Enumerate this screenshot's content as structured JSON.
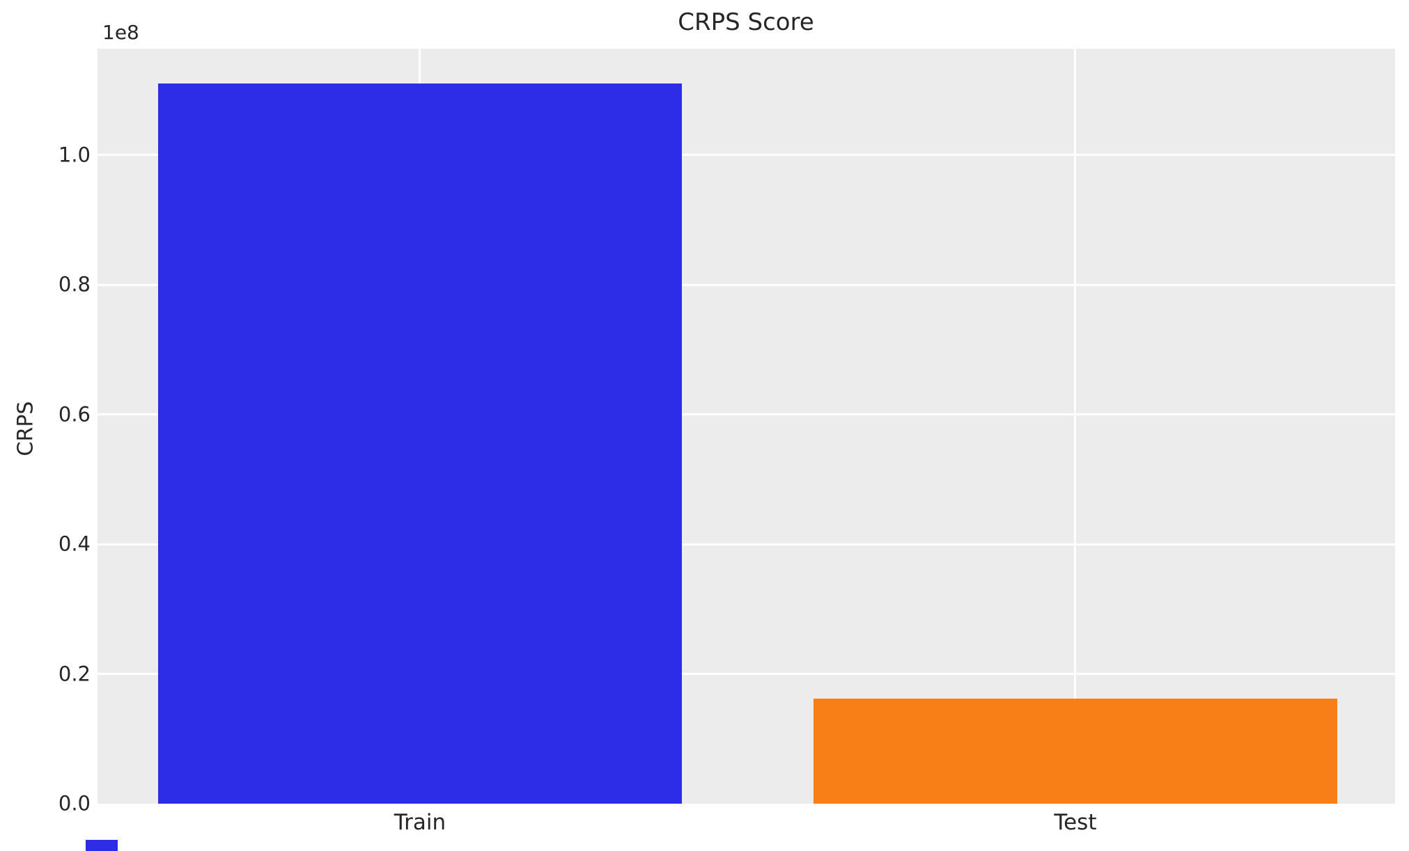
{
  "figure": {
    "background": "#ffffff",
    "plot_background": "#ececec",
    "grid_color": "#ffffff",
    "text_color": "#262626"
  },
  "chart_data": {
    "type": "bar",
    "title": "CRPS Score",
    "categories": [
      "Train",
      "Test"
    ],
    "values": [
      111000000,
      16200000
    ],
    "bar_colors": [
      "#2d2de8",
      "#f87e17"
    ],
    "xlabel": "",
    "ylabel": "CRPS",
    "y_offset_text": "1e8",
    "yticks": [
      0,
      20000000,
      40000000,
      60000000,
      80000000,
      100000000
    ],
    "ytick_labels": [
      "0.0",
      "0.2",
      "0.4",
      "0.6",
      "0.8",
      "1.0"
    ],
    "ylim": [
      0,
      116400000
    ],
    "grid": true,
    "legend_position": "none",
    "style": "seaborn-darkgrid"
  },
  "partial_elements": {
    "clipped_blue_fragment_color": "#2d2de8"
  }
}
